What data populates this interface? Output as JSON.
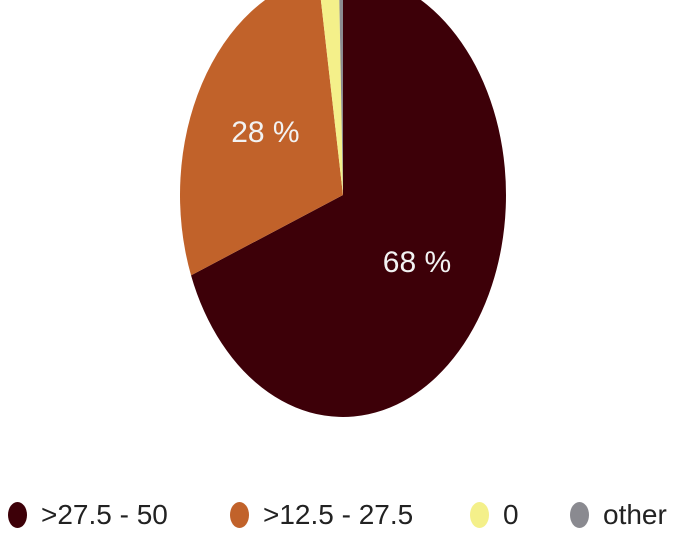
{
  "chart_data": {
    "type": "pie",
    "title": "",
    "slices": [
      {
        "label": ">27.5 - 50",
        "value": 68,
        "value_label": "68 %",
        "color": "#3d0008"
      },
      {
        "label": ">12.5 - 27.5",
        "value": 28,
        "value_label": "28 %",
        "color": "#c1622a"
      },
      {
        "label": "0",
        "value": 2,
        "value_label": "",
        "color": "#f4f08a"
      },
      {
        "label": "other",
        "value": 0.4,
        "value_label": "",
        "color": "#8a8a90"
      }
    ],
    "start_angle": "12 o'clock",
    "direction": "clockwise",
    "legend_position": "bottom"
  }
}
